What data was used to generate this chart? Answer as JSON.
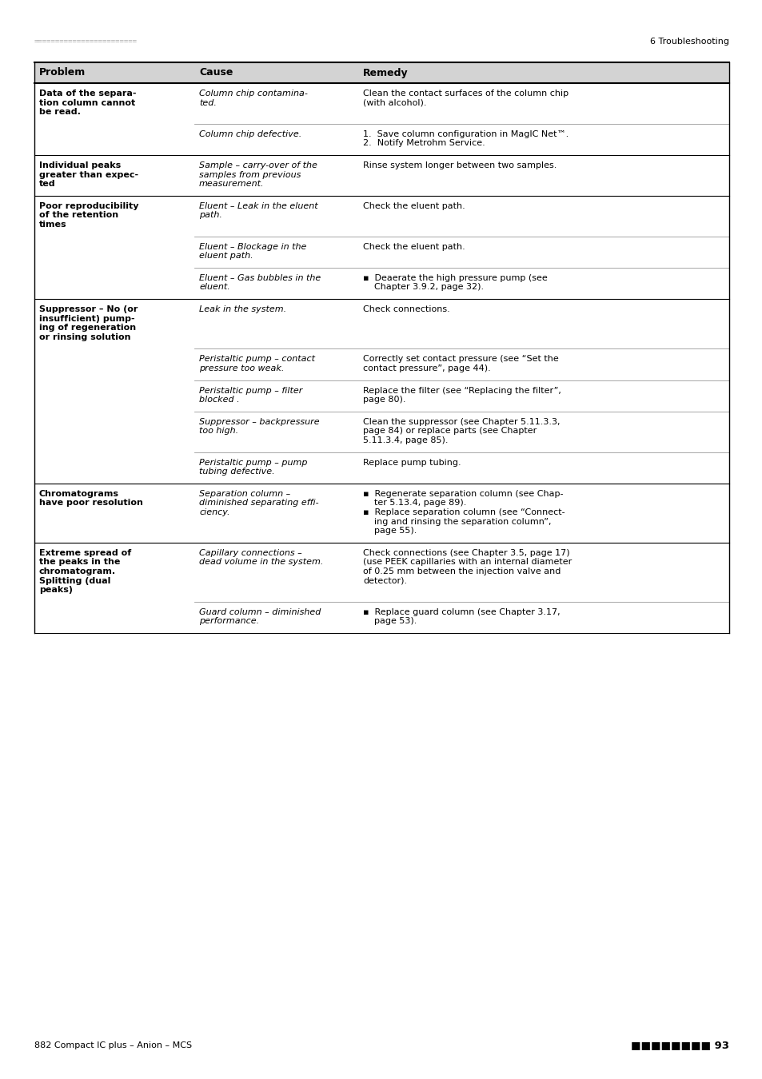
{
  "page_header_left": "========================",
  "page_header_right": "6 Troubleshooting",
  "page_footer_left": "882 Compact IC plus – Anion – MCS",
  "page_footer_right": "========  93",
  "header_bg": "#d3d3d3",
  "col_headers": [
    "Problem",
    "Cause",
    "Remedy"
  ],
  "rows": [
    {
      "problem": "Data of the separa-\ntion column cannot\nbe read.",
      "problem_bold": true,
      "cause": "Column chip contamina-\nted.",
      "cause_italic": true,
      "remedy": "Clean the contact surfaces of the column chip\n(with alcohol).",
      "remedy_italic": false,
      "is_first": true
    },
    {
      "problem": "",
      "problem_bold": false,
      "cause": "Column chip defective.",
      "cause_italic": true,
      "remedy": "1.  Save column configuration in MagIC Net™.\n2.  Notify Metrohm Service.",
      "remedy_italic": false,
      "is_first": false
    },
    {
      "problem": "Individual peaks\ngreater than expec-\nted",
      "problem_bold": true,
      "cause": "Sample – carry-over of the\nsamples from previous\nmeasurement.",
      "cause_italic": true,
      "remedy": "Rinse system longer between two samples.",
      "remedy_italic": false,
      "is_first": true
    },
    {
      "problem": "Poor reproducibility\nof the retention\ntimes",
      "problem_bold": true,
      "cause": "Eluent – Leak in the eluent\npath.",
      "cause_italic": true,
      "remedy": "Check the eluent path.",
      "remedy_italic": false,
      "is_first": true
    },
    {
      "problem": "",
      "problem_bold": false,
      "cause": "Eluent – Blockage in the\neluent path.",
      "cause_italic": true,
      "remedy": "Check the eluent path.",
      "remedy_italic": false,
      "is_first": false
    },
    {
      "problem": "",
      "problem_bold": false,
      "cause": "Eluent – Gas bubbles in the\neluent.",
      "cause_italic": true,
      "remedy": "▪  Deaerate the high pressure pump (see\n    Chapter 3.9.2, page 32).",
      "remedy_italic": false,
      "is_first": false
    },
    {
      "problem": "Suppressor – No (or\ninsufficient) pump-\ning of regeneration\nor rinsing solution",
      "problem_bold": true,
      "cause": "Leak in the system.",
      "cause_italic": true,
      "remedy": "Check connections.",
      "remedy_italic": false,
      "is_first": true
    },
    {
      "problem": "",
      "problem_bold": false,
      "cause": "Peristaltic pump – contact\npressure too weak.",
      "cause_italic": true,
      "remedy": "Correctly set contact pressure (see “Set the\ncontact pressure”, page 44).",
      "remedy_italic": false,
      "is_first": false
    },
    {
      "problem": "",
      "problem_bold": false,
      "cause": "Peristaltic pump – filter\nblocked .",
      "cause_italic": true,
      "remedy": "Replace the filter (see “Replacing the filter”,\npage 80).",
      "remedy_italic": false,
      "is_first": false
    },
    {
      "problem": "",
      "problem_bold": false,
      "cause": "Suppressor – backpressure\ntoo high.",
      "cause_italic": true,
      "remedy": "Clean the suppressor (see Chapter 5.11.3.3,\npage 84) or replace parts (see Chapter\n5.11.3.4, page 85).",
      "remedy_italic": false,
      "is_first": false
    },
    {
      "problem": "",
      "problem_bold": false,
      "cause": "Peristaltic pump – pump\ntubing defective.",
      "cause_italic": true,
      "remedy": "Replace pump tubing.",
      "remedy_italic": false,
      "is_first": false
    },
    {
      "problem": "Chromatograms\nhave poor resolution",
      "problem_bold": true,
      "cause": "Separation column –\ndiminished separating effi-\nciency.",
      "cause_italic": true,
      "remedy": "▪  Regenerate separation column (see Chap-\n    ter 5.13.4, page 89).\n▪  Replace separation column (see “Connect-\n    ing and rinsing the separation column”,\n    page 55).",
      "remedy_italic": false,
      "is_first": true
    },
    {
      "problem": "Extreme spread of\nthe peaks in the\nchromatogram.\nSplitting (dual\npeaks)",
      "problem_bold": true,
      "cause": "Capillary connections –\ndead volume in the system.",
      "cause_italic": true,
      "remedy": "Check connections (see Chapter 3.5, page 17)\n(use PEEK capillaries with an internal diameter\nof 0.25 mm between the injection valve and\ndetector).",
      "remedy_italic": false,
      "is_first": true
    },
    {
      "problem": "",
      "problem_bold": false,
      "cause": "Guard column – diminished\nperformance.",
      "cause_italic": true,
      "remedy": "▪  Replace guard column (see Chapter 3.17,\n    page 53).",
      "remedy_italic": false,
      "is_first": false
    }
  ],
  "background_color": "#ffffff",
  "text_color": "#000000",
  "line_color": "#000000",
  "font_size": 8.0,
  "header_font_size": 9.0
}
